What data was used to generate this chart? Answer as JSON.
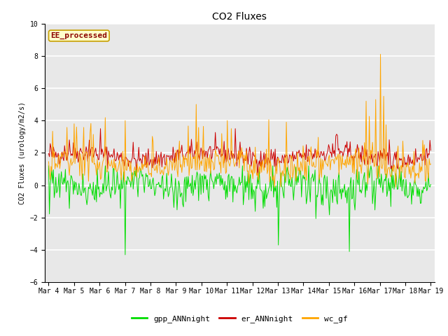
{
  "title": "CO2 Fluxes",
  "ylabel": "CO2 Fluxes (urology/m2/s)",
  "ylim": [
    -6,
    10
  ],
  "yticks": [
    -6,
    -4,
    -2,
    0,
    2,
    4,
    6,
    8,
    10
  ],
  "n_points": 480,
  "start_day": 4,
  "end_day": 19,
  "x_tick_labels": [
    "Mar 4",
    "Mar 5",
    "Mar 6",
    "Mar 7",
    "Mar 8",
    "Mar 9",
    "Mar 10",
    "Mar 11",
    "Mar 12",
    "Mar 13",
    "Mar 14",
    "Mar 15",
    "Mar 16",
    "Mar 17",
    "Mar 18",
    "Mar 19"
  ],
  "annotation_text": "EE_processed",
  "annotation_color": "#8B0000",
  "annotation_bg": "#FFFFCC",
  "annotation_border": "#C8A000",
  "gpp_color": "#00DD00",
  "er_color": "#CC0000",
  "wc_color": "#FFA500",
  "legend_labels": [
    "gpp_ANNnight",
    "er_ANNnight",
    "wc_gf"
  ],
  "background_color": "#E8E8E8",
  "grid_color": "#FFFFFF",
  "title_fontsize": 10,
  "axis_label_fontsize": 7,
  "tick_fontsize": 7,
  "annotation_fontsize": 8,
  "legend_fontsize": 8,
  "seed": 42
}
